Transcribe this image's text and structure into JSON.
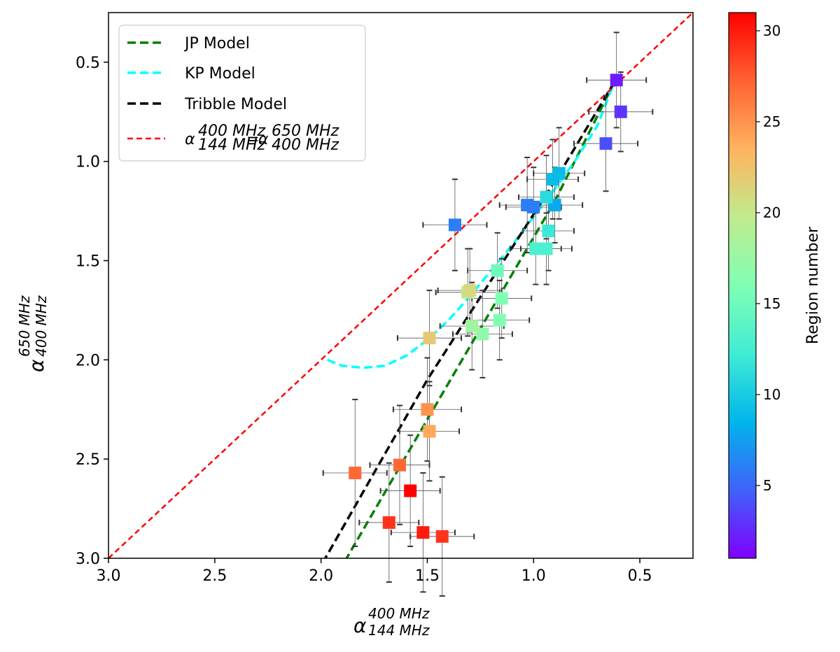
{
  "chart_data": {
    "type": "scatter",
    "x_label": {
      "symbol": "α",
      "sup": "400 MHz",
      "sub": "144 MHz"
    },
    "y_label": {
      "symbol": "α",
      "sup": "650 MHz",
      "sub": "400 MHz"
    },
    "xlim": [
      3.0,
      0.25
    ],
    "ylim": [
      3.0,
      0.25
    ],
    "x_inverted": true,
    "y_inverted": true,
    "x_ticks": [
      3.0,
      2.5,
      2.0,
      1.5,
      1.0,
      0.5
    ],
    "x_tick_labels": [
      "3.0",
      "2.5",
      "2.0",
      "1.5",
      "1.0",
      "0.5"
    ],
    "y_ticks": [
      0.5,
      1.0,
      1.5,
      2.0,
      2.5,
      3.0
    ],
    "y_tick_labels": [
      "0.5",
      "1.0",
      "1.5",
      "2.0",
      "2.5",
      "3.0"
    ],
    "grid": false,
    "legend_position": "top-left",
    "colorbar": {
      "label": "Region number",
      "min": 1,
      "max": 31,
      "colormap": "rainbow",
      "ticks": [
        5,
        10,
        15,
        20,
        25,
        30
      ],
      "tick_labels": [
        "5",
        "10",
        "15",
        "20",
        "25",
        "30"
      ]
    },
    "legend": [
      {
        "label": "JP Model",
        "color": "#008000",
        "style": "dashed"
      },
      {
        "label": "KP Model",
        "color": "#00ffff",
        "style": "dashed"
      },
      {
        "label": "Tribble Model",
        "color": "#000000",
        "style": "dashed"
      },
      {
        "label_symbol": "α",
        "label_sup1": "400 MHz",
        "label_sub1": "144 MHz",
        "label_eq": "=",
        "label_sup2": "650 MHz",
        "label_sub2": "400 MHz",
        "color": "#ff0000",
        "style": "dashed"
      }
    ],
    "lines": [
      {
        "name": "JP Model",
        "color": "#008000",
        "x": [
          0.62,
          0.9,
          1.2,
          1.5,
          1.88
        ],
        "y": [
          0.6,
          1.2,
          1.75,
          2.3,
          3.0
        ]
      },
      {
        "name": "KP Model",
        "color": "#00ffff",
        "x": [
          1.97,
          1.9,
          1.8,
          1.7,
          1.6,
          1.5,
          1.4,
          1.3,
          1.2,
          1.1,
          1.0,
          0.9,
          0.8,
          0.7,
          0.62
        ],
        "y": [
          2.0,
          2.03,
          2.04,
          2.03,
          1.98,
          1.9,
          1.8,
          1.68,
          1.55,
          1.42,
          1.28,
          1.14,
          0.99,
          0.82,
          0.6
        ]
      },
      {
        "name": "Tribble Model",
        "color": "#000000",
        "x": [
          0.62,
          0.9,
          1.2,
          1.5,
          1.98
        ],
        "y": [
          0.6,
          1.1,
          1.6,
          2.1,
          3.0
        ]
      },
      {
        "name": "equality",
        "color": "#ff0000",
        "x": [
          3.0,
          0.25
        ],
        "y": [
          3.0,
          0.25
        ]
      }
    ],
    "points": [
      {
        "x": 0.61,
        "y": 0.59,
        "xerr": 0.14,
        "yerr": 0.24,
        "region": 2
      },
      {
        "x": 0.59,
        "y": 0.75,
        "xerr": 0.15,
        "yerr": 0.2,
        "region": 3
      },
      {
        "x": 0.66,
        "y": 0.91,
        "xerr": 0.15,
        "yerr": 0.24,
        "region": 4
      },
      {
        "x": 1.37,
        "y": 1.32,
        "xerr": 0.15,
        "yerr": 0.23,
        "region": 6
      },
      {
        "x": 1.03,
        "y": 1.22,
        "xerr": 0.13,
        "yerr": 0.24,
        "region": 6
      },
      {
        "x": 1.0,
        "y": 1.23,
        "xerr": 0.13,
        "yerr": 0.2,
        "region": 6
      },
      {
        "x": 0.9,
        "y": 1.22,
        "xerr": 0.13,
        "yerr": 0.19,
        "region": 8
      },
      {
        "x": 0.88,
        "y": 1.06,
        "xerr": 0.12,
        "yerr": 0.23,
        "region": 9
      },
      {
        "x": 0.91,
        "y": 1.09,
        "xerr": 0.12,
        "yerr": 0.2,
        "region": 9
      },
      {
        "x": 0.94,
        "y": 1.18,
        "xerr": 0.13,
        "yerr": 0.21,
        "region": 11
      },
      {
        "x": 0.93,
        "y": 1.35,
        "xerr": 0.12,
        "yerr": 0.2,
        "region": 12
      },
      {
        "x": 0.99,
        "y": 1.44,
        "xerr": 0.12,
        "yerr": 0.18,
        "region": 13
      },
      {
        "x": 0.94,
        "y": 1.44,
        "xerr": 0.12,
        "yerr": 0.18,
        "region": 13
      },
      {
        "x": 1.17,
        "y": 1.55,
        "xerr": 0.14,
        "yerr": 0.19,
        "region": 15
      },
      {
        "x": 1.15,
        "y": 1.69,
        "xerr": 0.14,
        "yerr": 0.2,
        "region": 16
      },
      {
        "x": 1.16,
        "y": 1.8,
        "xerr": 0.14,
        "yerr": 0.2,
        "region": 16
      },
      {
        "x": 1.24,
        "y": 1.87,
        "xerr": 0.14,
        "yerr": 0.22,
        "region": 17
      },
      {
        "x": 1.29,
        "y": 1.83,
        "xerr": 0.15,
        "yerr": 0.22,
        "region": 18
      },
      {
        "x": 1.31,
        "y": 1.66,
        "xerr": 0.15,
        "yerr": 0.22,
        "region": 20
      },
      {
        "x": 1.3,
        "y": 1.65,
        "xerr": 0.15,
        "yerr": 0.21,
        "region": 21
      },
      {
        "x": 1.49,
        "y": 1.89,
        "xerr": 0.15,
        "yerr": 0.24,
        "region": 22
      },
      {
        "x": 1.5,
        "y": 2.25,
        "xerr": 0.16,
        "yerr": 0.26,
        "region": 25
      },
      {
        "x": 1.49,
        "y": 2.36,
        "xerr": 0.14,
        "yerr": 0.25,
        "region": 24
      },
      {
        "x": 1.84,
        "y": 2.57,
        "xerr": 0.15,
        "yerr": 0.37,
        "region": 27
      },
      {
        "x": 1.63,
        "y": 2.53,
        "xerr": 0.14,
        "yerr": 0.3,
        "region": 27
      },
      {
        "x": 1.58,
        "y": 2.66,
        "xerr": 0.14,
        "yerr": 0.28,
        "region": 31
      },
      {
        "x": 1.68,
        "y": 2.82,
        "xerr": 0.14,
        "yerr": 0.3,
        "region": 29
      },
      {
        "x": 1.52,
        "y": 2.87,
        "xerr": 0.15,
        "yerr": 0.3,
        "region": 30
      },
      {
        "x": 1.43,
        "y": 2.89,
        "xerr": 0.15,
        "yerr": 0.3,
        "region": 29
      }
    ]
  }
}
